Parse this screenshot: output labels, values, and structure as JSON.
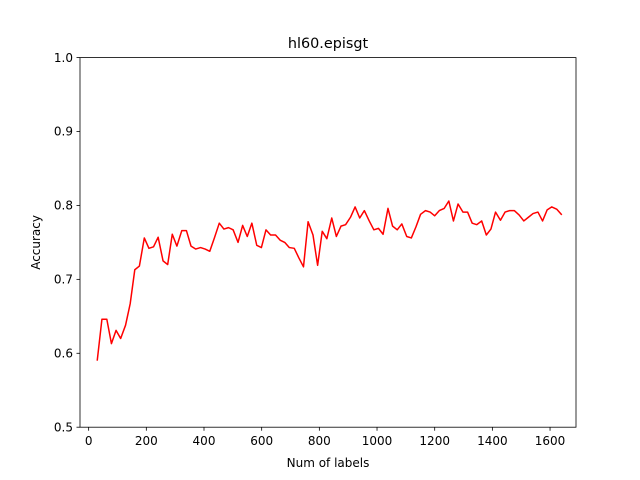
{
  "chart_data": {
    "type": "line",
    "title": "hl60.episgt",
    "xlabel": "Num of labels",
    "ylabel": "Accuracy",
    "xlim": [
      -30,
      1690
    ],
    "ylim": [
      0.5,
      1.0
    ],
    "xticks": [
      0,
      200,
      400,
      600,
      800,
      1000,
      1200,
      1400,
      1600
    ],
    "yticks": [
      0.5,
      0.6,
      0.7,
      0.8,
      0.9,
      1.0
    ],
    "xtick_labels": [
      "0",
      "200",
      "400",
      "600",
      "800",
      "1000",
      "1200",
      "1400",
      "1600"
    ],
    "ytick_labels": [
      "0.5",
      "0.6",
      "0.7",
      "0.8",
      "0.9",
      "1.0"
    ],
    "grid": false,
    "series": [
      {
        "color": "#ff0000",
        "x": [
          30,
          46,
          63,
          79,
          95,
          111,
          128,
          144,
          160,
          176,
          193,
          209,
          225,
          241,
          258,
          274,
          290,
          306,
          323,
          339,
          355,
          371,
          388,
          404,
          420,
          436,
          453,
          469,
          485,
          501,
          518,
          534,
          550,
          566,
          583,
          599,
          615,
          631,
          648,
          664,
          680,
          696,
          713,
          729,
          745,
          761,
          778,
          794,
          810,
          826,
          843,
          859,
          875,
          891,
          908,
          924,
          940,
          956,
          973,
          989,
          1005,
          1021,
          1038,
          1054,
          1070,
          1086,
          1103,
          1119,
          1135,
          1151,
          1168,
          1184,
          1200,
          1216,
          1233,
          1249,
          1265,
          1281,
          1298,
          1314,
          1330,
          1346,
          1363,
          1379,
          1395,
          1411,
          1428,
          1444,
          1460,
          1476,
          1493,
          1509,
          1525,
          1541,
          1558,
          1574,
          1590,
          1606,
          1623,
          1639
        ],
        "y": [
          0.591,
          0.646,
          0.646,
          0.613,
          0.631,
          0.62,
          0.638,
          0.667,
          0.713,
          0.718,
          0.756,
          0.742,
          0.744,
          0.757,
          0.725,
          0.72,
          0.761,
          0.745,
          0.766,
          0.766,
          0.745,
          0.741,
          0.743,
          0.741,
          0.738,
          0.756,
          0.776,
          0.768,
          0.77,
          0.767,
          0.75,
          0.773,
          0.758,
          0.776,
          0.746,
          0.743,
          0.767,
          0.76,
          0.76,
          0.753,
          0.75,
          0.743,
          0.742,
          0.729,
          0.717,
          0.778,
          0.76,
          0.719,
          0.765,
          0.755,
          0.783,
          0.758,
          0.772,
          0.774,
          0.784,
          0.798,
          0.783,
          0.793,
          0.779,
          0.767,
          0.769,
          0.761,
          0.796,
          0.772,
          0.767,
          0.775,
          0.758,
          0.756,
          0.771,
          0.788,
          0.793,
          0.791,
          0.786,
          0.793,
          0.796,
          0.806,
          0.779,
          0.802,
          0.791,
          0.791,
          0.776,
          0.774,
          0.779,
          0.76,
          0.768,
          0.791,
          0.78,
          0.791,
          0.793,
          0.793,
          0.787,
          0.779,
          0.784,
          0.789,
          0.791,
          0.779,
          0.794,
          0.798,
          0.795,
          0.788
        ]
      }
    ]
  }
}
